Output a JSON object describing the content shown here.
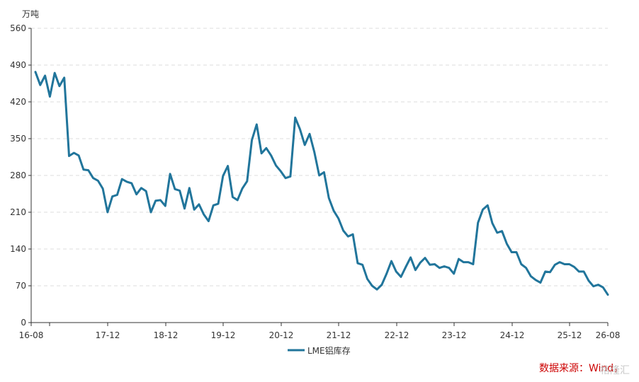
{
  "chart_data": {
    "type": "line",
    "y_unit": "万吨",
    "ylim": [
      0,
      560
    ],
    "y_ticks": [
      0,
      70,
      140,
      210,
      280,
      350,
      420,
      490,
      560
    ],
    "x_ticks": [
      "16-08",
      "17-12",
      "18-12",
      "19-12",
      "20-12",
      "21-12",
      "22-12",
      "23-12",
      "24-12",
      "25-12",
      "26-08"
    ],
    "grid": true,
    "legend_position": "bottom-center",
    "series": [
      {
        "name": "LME铝库存",
        "color": "#21759b",
        "values": [
          477,
          452,
          470,
          430,
          475,
          450,
          466,
          317,
          323,
          318,
          291,
          290,
          275,
          270,
          255,
          210,
          240,
          243,
          273,
          268,
          265,
          244,
          256,
          250,
          210,
          232,
          233,
          222,
          283,
          254,
          251,
          217,
          256,
          215,
          225,
          206,
          193,
          223,
          226,
          279,
          298,
          239,
          233,
          255,
          269,
          347,
          377,
          322,
          332,
          318,
          299,
          288,
          275,
          278,
          390,
          368,
          338,
          359,
          324,
          280,
          286,
          237,
          213,
          198,
          175,
          164,
          168,
          113,
          110,
          83,
          70,
          63,
          72,
          93,
          117,
          97,
          87,
          106,
          124,
          100,
          114,
          123,
          110,
          111,
          104,
          107,
          104,
          93,
          121,
          115,
          115,
          111,
          190,
          215,
          223,
          189,
          171,
          174,
          150,
          134,
          134,
          111,
          104,
          88,
          81,
          76,
          97,
          96,
          110,
          115,
          111,
          111,
          106,
          97,
          97,
          80,
          69,
          72,
          67,
          53
        ]
      }
    ],
    "source": "数据来源：Wind，",
    "watermark": "格隆汇"
  }
}
